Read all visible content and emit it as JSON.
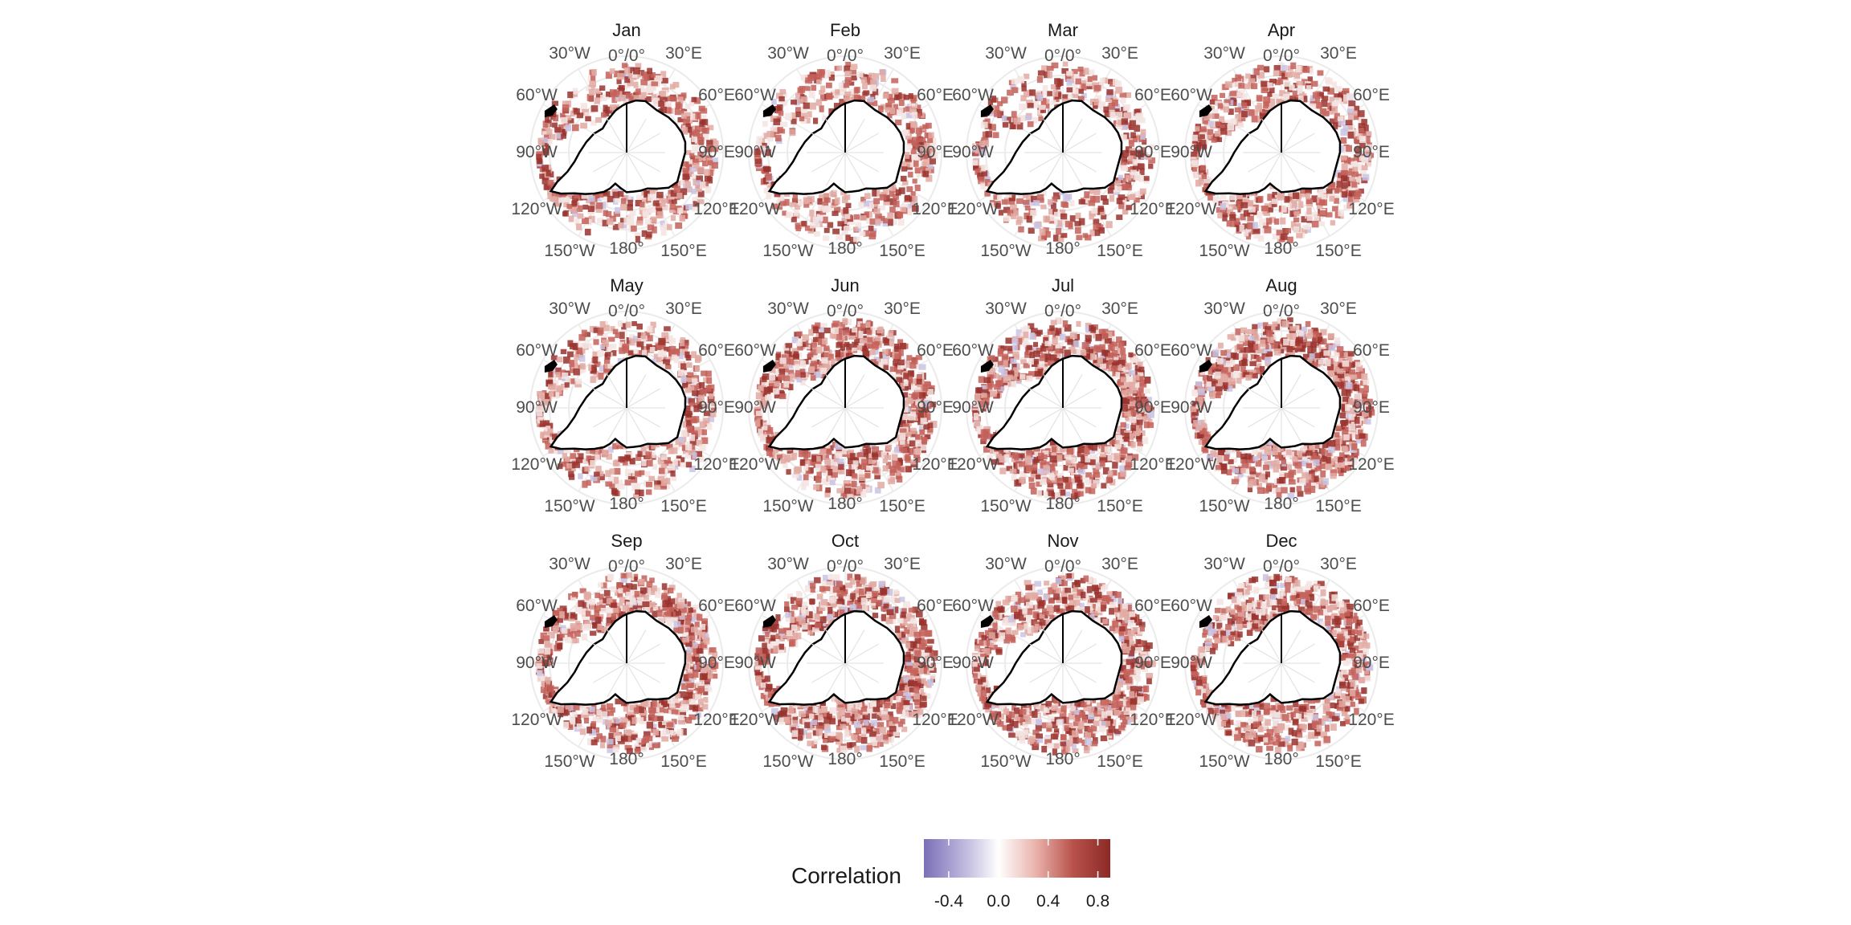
{
  "figure": {
    "panels": [
      {
        "title": "Jan"
      },
      {
        "title": "Feb"
      },
      {
        "title": "Mar"
      },
      {
        "title": "Apr"
      },
      {
        "title": "May"
      },
      {
        "title": "Jun"
      },
      {
        "title": "Jul"
      },
      {
        "title": "Aug"
      },
      {
        "title": "Sep"
      },
      {
        "title": "Oct"
      },
      {
        "title": "Nov"
      },
      {
        "title": "Dec"
      }
    ],
    "longitude_labels": [
      "0°/0°",
      "30°E",
      "60°E",
      "90°E",
      "120°E",
      "150°E",
      "180°",
      "150°W",
      "120°W",
      "90°W",
      "60°W",
      "30°W"
    ],
    "legend": {
      "title": "Correlation",
      "ticks": [
        "-0.4",
        "0.0",
        "0.4",
        "0.8"
      ],
      "tick_values": [
        -0.4,
        0.0,
        0.4,
        0.8
      ],
      "range": [
        -0.6,
        0.9
      ],
      "colors": {
        "low": "#7b6fb8",
        "mid": "#ffffff",
        "high": "#8b2a26"
      }
    }
  }
}
